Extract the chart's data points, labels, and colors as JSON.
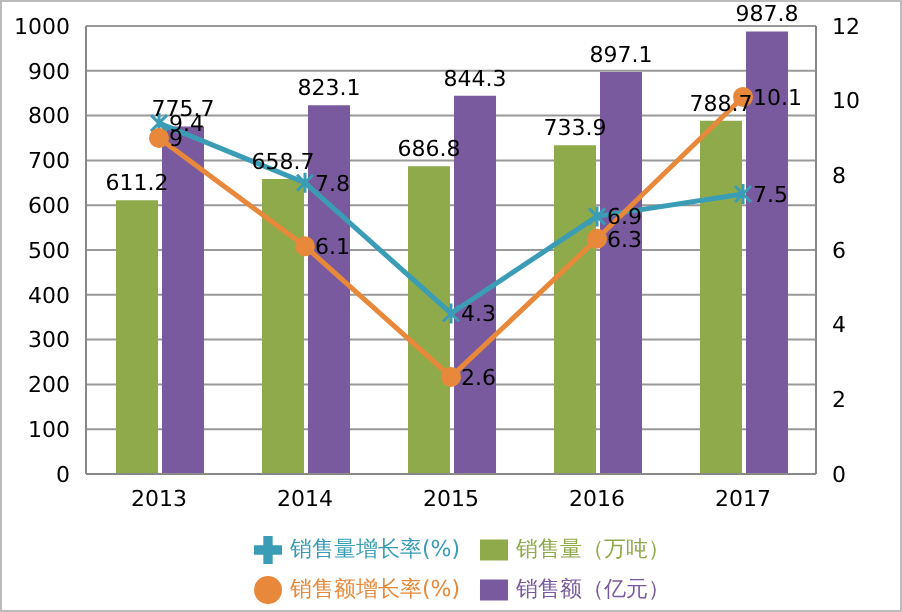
{
  "chart_data": {
    "type": "bar",
    "categories": [
      "2013",
      "2014",
      "2015",
      "2016",
      "2017"
    ],
    "series": [
      {
        "name": "销售量（万吨）",
        "color": "#8faa4a",
        "values": [
          611.2,
          658.7,
          686.8,
          733.9,
          788.7
        ]
      },
      {
        "name": "销售额（亿元）",
        "color": "#7a5a9e",
        "values": [
          775.7,
          823.1,
          844.3,
          897.1,
          987.8
        ]
      },
      {
        "name": "销售量增长率(%)",
        "type": "line",
        "axis": "y2",
        "marker": "cross",
        "color": "#3a9db5",
        "values": [
          9.4,
          7.8,
          4.3,
          6.9,
          7.5
        ]
      },
      {
        "name": "销售额增长率(%)",
        "type": "line",
        "axis": "y2",
        "marker": "circle",
        "color": "#e8883a",
        "values": [
          9,
          6.1,
          2.6,
          6.3,
          10.1
        ]
      }
    ],
    "ylim": [
      0,
      1000
    ],
    "yticks": [
      0,
      100,
      200,
      300,
      400,
      500,
      600,
      700,
      800,
      900,
      1000
    ],
    "y2lim": [
      0,
      12
    ],
    "y2ticks": [
      0,
      2,
      4,
      6,
      8,
      10,
      12
    ],
    "grid": "y",
    "legend": "bottom",
    "data_labels": true
  }
}
